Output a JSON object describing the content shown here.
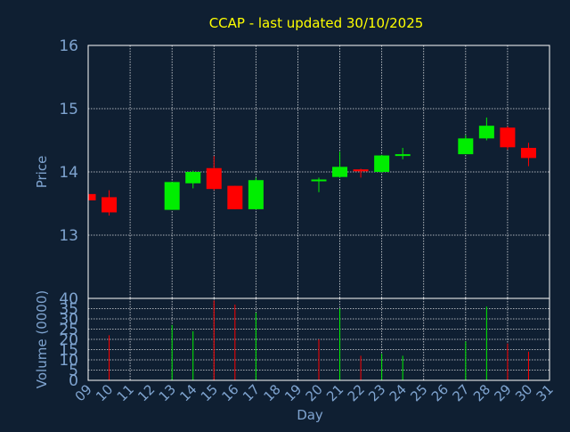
{
  "colors": {
    "background": "#0f1f32",
    "title": "#ffff00",
    "axis_text": "#7fa4d0",
    "frame": "#ffffff",
    "grid": "#ffffff",
    "up": "#00ee00",
    "down": "#ff0000"
  },
  "chart_data": [
    {
      "type": "candlestick",
      "title": "CCAP - last updated 30/10/2025",
      "ylabel": "Price",
      "ylim": [
        12.0,
        16.0
      ],
      "y_ticks": [
        "13",
        "14",
        "15",
        "16"
      ],
      "y_tick_values": [
        13,
        14,
        15,
        16
      ],
      "grid": true,
      "x": [
        9,
        10,
        13,
        14,
        15,
        16,
        17,
        20,
        21,
        22,
        23,
        24,
        27,
        28,
        29,
        30
      ],
      "open": [
        13.65,
        13.6,
        13.4,
        13.82,
        14.06,
        13.78,
        13.41,
        13.88,
        13.92,
        14.04,
        14.0,
        14.26,
        14.28,
        14.53,
        14.7,
        14.38
      ],
      "high": [
        13.65,
        13.71,
        13.84,
        14.02,
        14.25,
        13.78,
        13.91,
        13.91,
        14.32,
        14.05,
        14.27,
        14.38,
        14.58,
        14.86,
        14.72,
        14.46
      ],
      "low": [
        13.54,
        13.31,
        13.4,
        13.74,
        13.71,
        13.41,
        13.41,
        13.68,
        13.91,
        13.91,
        13.99,
        14.2,
        14.28,
        14.5,
        14.35,
        14.09
      ],
      "close": [
        13.55,
        13.36,
        13.84,
        14.0,
        13.73,
        13.41,
        13.87,
        13.88,
        14.08,
        14.01,
        14.26,
        14.28,
        14.53,
        14.73,
        14.39,
        14.22
      ]
    },
    {
      "type": "bar",
      "ylabel": "Volume (0000)",
      "ylim": [
        0,
        40
      ],
      "y_ticks": [
        "0",
        "5",
        "10",
        "15",
        "20",
        "25",
        "30",
        "35",
        "40"
      ],
      "y_tick_values": [
        0,
        5,
        10,
        15,
        20,
        25,
        30,
        35,
        40
      ],
      "xlabel": "Day",
      "x_ticks": [
        "09",
        "10",
        "11",
        "12",
        "13",
        "14",
        "15",
        "16",
        "17",
        "18",
        "19",
        "20",
        "21",
        "22",
        "23",
        "24",
        "25",
        "26",
        "27",
        "28",
        "29",
        "30",
        "31"
      ],
      "x_tick_values": [
        9,
        10,
        11,
        12,
        13,
        14,
        15,
        16,
        17,
        18,
        19,
        20,
        21,
        22,
        23,
        24,
        25,
        26,
        27,
        28,
        29,
        30,
        31
      ],
      "x": [
        9,
        10,
        13,
        14,
        15,
        16,
        17,
        20,
        21,
        22,
        23,
        24,
        27,
        28,
        29,
        30
      ],
      "values": [
        0,
        22,
        27,
        24,
        39,
        37,
        33,
        20,
        35,
        12,
        13,
        12,
        19,
        36,
        18,
        14
      ],
      "direction": [
        "down",
        "down",
        "up",
        "up",
        "down",
        "down",
        "up",
        "down",
        "up",
        "down",
        "up",
        "up",
        "up",
        "up",
        "down",
        "down"
      ]
    }
  ]
}
